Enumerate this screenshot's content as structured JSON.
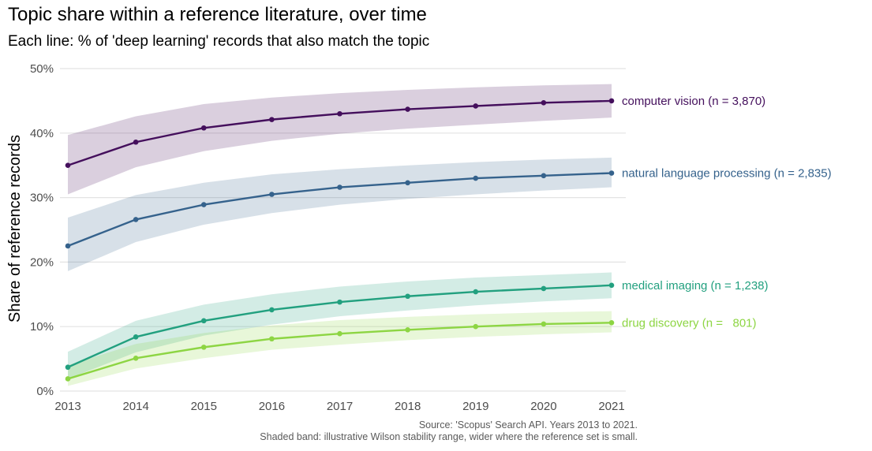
{
  "chart_data": {
    "type": "line",
    "title": "Topic share within a reference literature, over time",
    "subtitle": "Each line: % of 'deep learning' records that also match the topic",
    "xlabel": "",
    "ylabel": "Share of reference records",
    "x": [
      2013,
      2014,
      2015,
      2016,
      2017,
      2018,
      2019,
      2020,
      2021
    ],
    "x_tick_labels": [
      "2013",
      "2014",
      "2015",
      "2016",
      "2017",
      "2018",
      "2019",
      "2020",
      "2021"
    ],
    "ylim": [
      0,
      50
    ],
    "y_ticks": [
      0,
      10,
      20,
      30,
      40,
      50
    ],
    "y_tick_labels": [
      "0%",
      "10%",
      "20%",
      "30%",
      "40%",
      "50%"
    ],
    "grid": true,
    "legend": "direct labels at line ends",
    "series": [
      {
        "label": "computer vision (n = 3,870)",
        "color": "#440f5c",
        "values": [
          35.0,
          38.6,
          40.8,
          42.1,
          43.0,
          43.7,
          44.2,
          44.7,
          45.0
        ],
        "band_low": [
          30.5,
          34.7,
          37.2,
          38.8,
          39.9,
          40.7,
          41.3,
          41.9,
          42.4
        ],
        "band_high": [
          39.7,
          42.6,
          44.5,
          45.5,
          46.2,
          46.7,
          47.1,
          47.4,
          47.6
        ]
      },
      {
        "label": "natural language processing (n = 2,835)",
        "color": "#35628c",
        "values": [
          22.5,
          26.6,
          28.9,
          30.5,
          31.6,
          32.3,
          33.0,
          33.4,
          33.8
        ],
        "band_low": [
          18.6,
          23.1,
          25.8,
          27.6,
          28.9,
          29.8,
          30.5,
          31.1,
          31.6
        ],
        "band_high": [
          26.9,
          30.4,
          32.3,
          33.6,
          34.4,
          35.0,
          35.5,
          35.9,
          36.2
        ]
      },
      {
        "label": "medical imaging (n = 1,238)",
        "color": "#22a07f",
        "values": [
          3.7,
          8.4,
          10.9,
          12.6,
          13.8,
          14.7,
          15.4,
          15.9,
          16.4
        ],
        "band_low": [
          1.9,
          6.0,
          8.6,
          10.3,
          11.6,
          12.5,
          13.3,
          13.9,
          14.4
        ],
        "band_high": [
          6.1,
          10.9,
          13.4,
          15.0,
          16.2,
          17.0,
          17.6,
          18.0,
          18.4
        ]
      },
      {
        "label": "drug discovery (n =   801)",
        "color": "#8dd543",
        "values": [
          1.9,
          5.1,
          6.8,
          8.1,
          8.9,
          9.5,
          10.0,
          10.4,
          10.6
        ],
        "band_low": [
          0.8,
          3.5,
          5.1,
          6.4,
          7.2,
          7.9,
          8.4,
          8.8,
          9.1
        ],
        "band_high": [
          4.0,
          7.3,
          9.0,
          10.2,
          11.0,
          11.5,
          11.9,
          12.2,
          12.4
        ]
      }
    ],
    "caption": [
      "Source: 'Scopus' Search API. Years 2013 to 2021.",
      "Shaded band: illustrative Wilson stability range, wider where the reference set is small."
    ]
  }
}
